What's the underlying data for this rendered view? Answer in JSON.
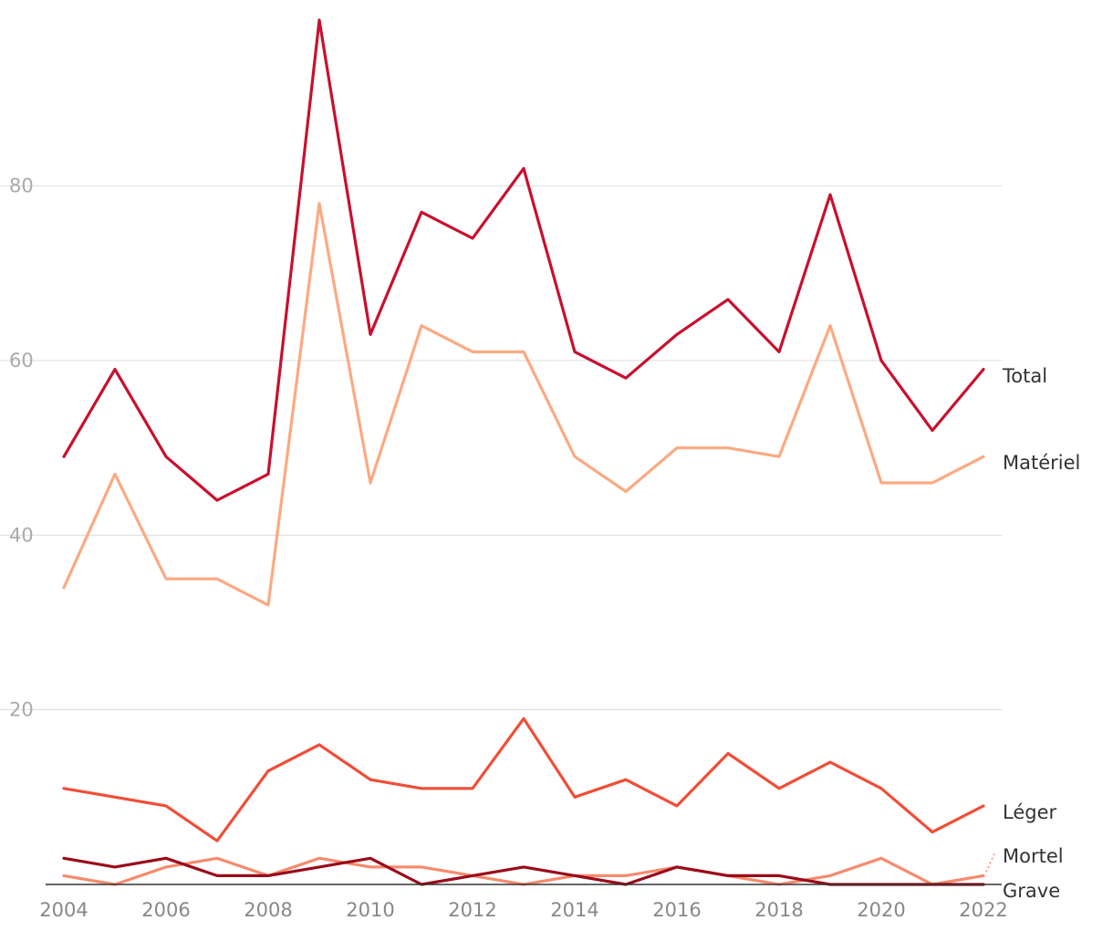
{
  "chart_data": {
    "type": "line",
    "title": "",
    "xlabel": "",
    "ylabel": "",
    "x": [
      2004,
      2005,
      2006,
      2007,
      2008,
      2009,
      2010,
      2011,
      2012,
      2013,
      2014,
      2015,
      2016,
      2017,
      2018,
      2019,
      2020,
      2021,
      2022
    ],
    "x_tick_labels": [
      "2004",
      "2006",
      "2008",
      "2010",
      "2012",
      "2014",
      "2016",
      "2018",
      "2020",
      "2022"
    ],
    "y_tick_labels": [
      "20",
      "40",
      "60",
      "80"
    ],
    "ylim": [
      0,
      99
    ],
    "grid": true,
    "legend": "direct-labels-right",
    "series": [
      {
        "name": "Total",
        "color": "#c8102e",
        "values": [
          49,
          59,
          49,
          44,
          47,
          99,
          63,
          77,
          74,
          82,
          61,
          58,
          63,
          67,
          61,
          79,
          60,
          52,
          59
        ]
      },
      {
        "name": "Matériel",
        "color": "#fca982",
        "values": [
          34,
          47,
          35,
          35,
          32,
          78,
          46,
          64,
          61,
          61,
          49,
          45,
          50,
          50,
          49,
          64,
          46,
          46,
          49
        ]
      },
      {
        "name": "Léger",
        "color": "#f04e37",
        "values": [
          11,
          10,
          9,
          5,
          13,
          16,
          12,
          11,
          11,
          19,
          10,
          12,
          9,
          15,
          11,
          14,
          11,
          6,
          9
        ]
      },
      {
        "name": "Mortel",
        "color": "#f78a6e",
        "values": [
          1,
          0,
          2,
          3,
          1,
          3,
          2,
          2,
          1,
          0,
          1,
          1,
          2,
          1,
          0,
          1,
          3,
          0,
          1
        ]
      },
      {
        "name": "Grave",
        "color": "#9b0a1a",
        "values": [
          3,
          2,
          3,
          1,
          1,
          2,
          3,
          0,
          1,
          2,
          1,
          0,
          2,
          1,
          1,
          0,
          0,
          0,
          0
        ]
      }
    ]
  }
}
